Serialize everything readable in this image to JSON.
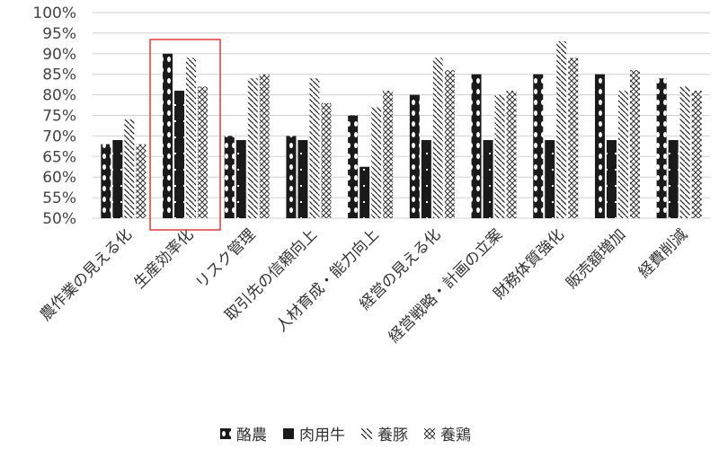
{
  "chart_data": {
    "type": "bar",
    "categories": [
      "農作業の見える化",
      "生産効率化",
      "リスク管理",
      "取引先の信頼向上",
      "人材育成・能力向上",
      "経営の見える化",
      "経営戦略・計画の立案",
      "財務体質強化",
      "販売額増加",
      "経費削減"
    ],
    "series": [
      {
        "name": "酪農",
        "values": [
          68,
          90,
          70,
          70,
          75,
          80,
          85,
          85,
          85,
          84
        ]
      },
      {
        "name": "肉用牛",
        "values": [
          69,
          81,
          69,
          69,
          62.5,
          69,
          69,
          69,
          69,
          69
        ]
      },
      {
        "name": "養豚",
        "values": [
          74,
          89,
          84,
          84,
          77,
          89,
          80,
          93,
          81,
          82
        ]
      },
      {
        "name": "養鶏",
        "values": [
          68,
          82,
          85,
          78,
          81,
          86,
          81,
          89,
          86,
          81
        ]
      }
    ],
    "ylim": [
      50,
      100
    ],
    "yticks": [
      "50%",
      "55%",
      "60%",
      "65%",
      "70%",
      "75%",
      "80%",
      "85%",
      "90%",
      "95%",
      "100%"
    ],
    "grid": true,
    "legend_position": "bottom",
    "highlight_category": "生産効率化",
    "colors": {
      "highlight_box": "#e23a3a",
      "gridline": "#d0d0d0",
      "bar_dark": "#1a1a1a"
    }
  }
}
